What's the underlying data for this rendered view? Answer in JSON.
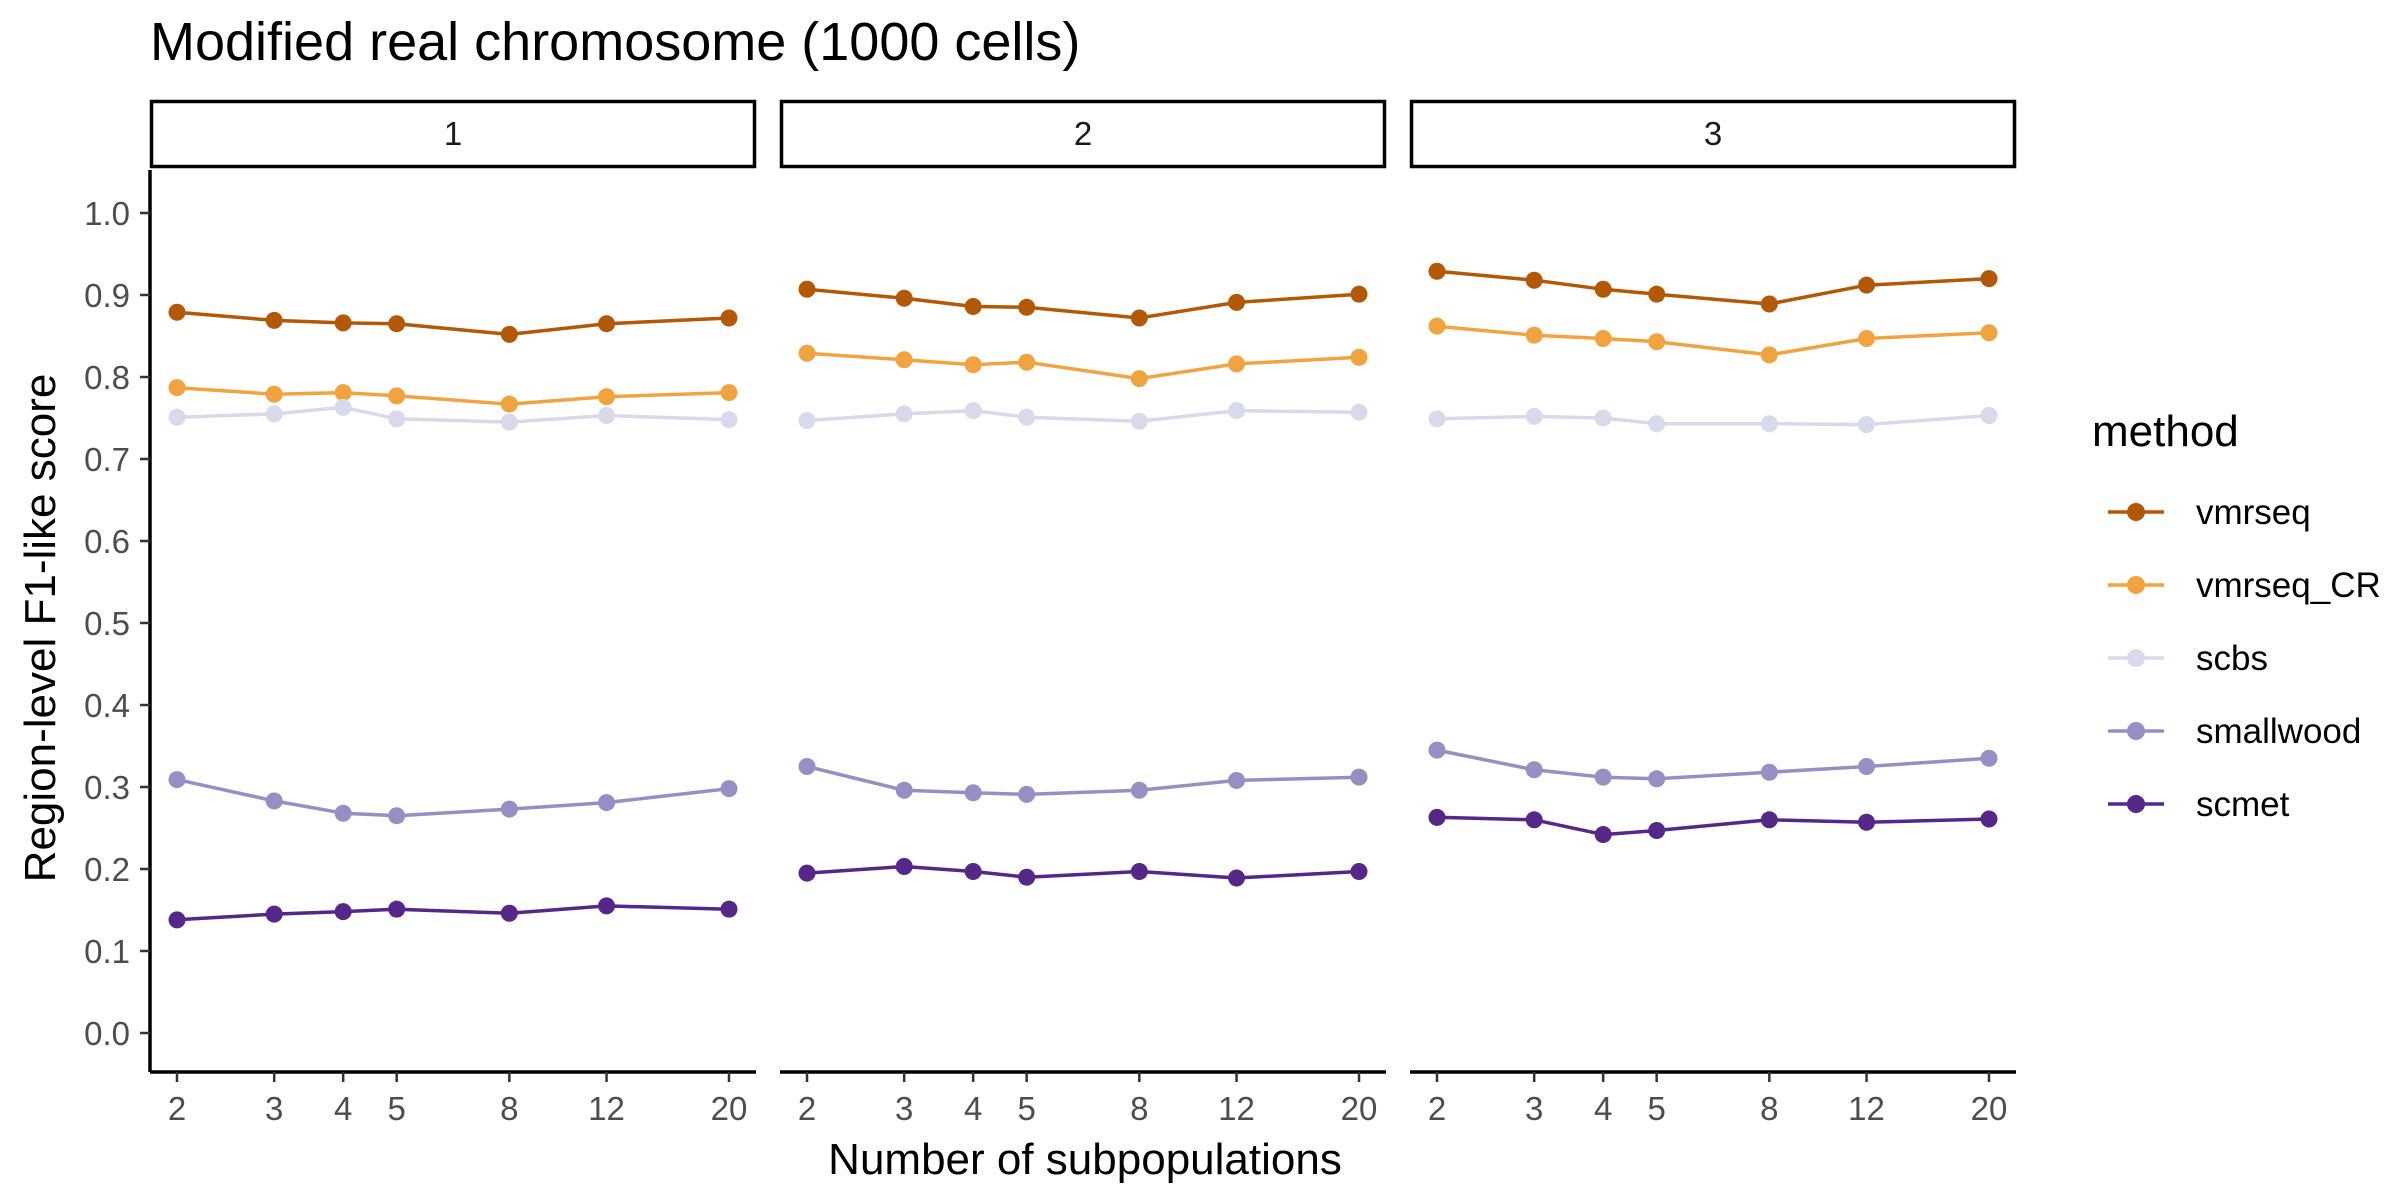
{
  "chart_data": {
    "type": "line",
    "title": "Modified real chromosome (1000 cells)",
    "xlabel": "Number of subpopulations",
    "ylabel": "Region-level F1-like score",
    "x": [
      2,
      3,
      4,
      5,
      8,
      12,
      20
    ],
    "x_scale": "log",
    "ylim": [
      0.0,
      1.0
    ],
    "yticks": [
      "0.0",
      "0.1",
      "0.2",
      "0.3",
      "0.4",
      "0.5",
      "0.6",
      "0.7",
      "0.8",
      "0.9",
      "1.0"
    ],
    "grid": false,
    "legend": {
      "title": "method",
      "placement": "right"
    },
    "facets": [
      {
        "label": "1",
        "series": [
          {
            "name": "vmrseq",
            "color": "#b35806",
            "values": [
              0.879,
              0.869,
              0.866,
              0.865,
              0.852,
              0.865,
              0.872
            ]
          },
          {
            "name": "vmrseq_CR",
            "color": "#f1a340",
            "values": [
              0.787,
              0.779,
              0.781,
              0.777,
              0.767,
              0.776,
              0.781
            ]
          },
          {
            "name": "scbs",
            "color": "#d8daeb",
            "values": [
              0.751,
              0.755,
              0.763,
              0.749,
              0.745,
              0.753,
              0.748
            ]
          },
          {
            "name": "smallwood",
            "color": "#998ec3",
            "values": [
              0.309,
              0.283,
              0.268,
              0.265,
              0.273,
              0.281,
              0.298
            ]
          },
          {
            "name": "scmet",
            "color": "#542788",
            "values": [
              0.138,
              0.145,
              0.148,
              0.151,
              0.146,
              0.155,
              0.151
            ]
          }
        ]
      },
      {
        "label": "2",
        "series": [
          {
            "name": "vmrseq",
            "color": "#b35806",
            "values": [
              0.907,
              0.896,
              0.886,
              0.885,
              0.872,
              0.891,
              0.901
            ]
          },
          {
            "name": "vmrseq_CR",
            "color": "#f1a340",
            "values": [
              0.829,
              0.821,
              0.815,
              0.818,
              0.798,
              0.816,
              0.824
            ]
          },
          {
            "name": "scbs",
            "color": "#d8daeb",
            "values": [
              0.747,
              0.755,
              0.759,
              0.751,
              0.746,
              0.759,
              0.757
            ]
          },
          {
            "name": "smallwood",
            "color": "#998ec3",
            "values": [
              0.325,
              0.296,
              0.293,
              0.291,
              0.296,
              0.308,
              0.312
            ]
          },
          {
            "name": "scmet",
            "color": "#542788",
            "values": [
              0.195,
              0.203,
              0.197,
              0.19,
              0.197,
              0.189,
              0.197
            ]
          }
        ]
      },
      {
        "label": "3",
        "series": [
          {
            "name": "vmrseq",
            "color": "#b35806",
            "values": [
              0.929,
              0.918,
              0.907,
              0.901,
              0.889,
              0.912,
              0.92
            ]
          },
          {
            "name": "vmrseq_CR",
            "color": "#f1a340",
            "values": [
              0.862,
              0.851,
              0.847,
              0.843,
              0.827,
              0.847,
              0.854
            ]
          },
          {
            "name": "scbs",
            "color": "#d8daeb",
            "values": [
              0.749,
              0.752,
              0.75,
              0.743,
              0.743,
              0.742,
              0.753
            ]
          },
          {
            "name": "smallwood",
            "color": "#998ec3",
            "values": [
              0.345,
              0.321,
              0.312,
              0.31,
              0.318,
              0.325,
              0.335
            ]
          },
          {
            "name": "scmet",
            "color": "#542788",
            "values": [
              0.263,
              0.26,
              0.242,
              0.247,
              0.26,
              0.257,
              0.261
            ]
          }
        ]
      }
    ]
  }
}
